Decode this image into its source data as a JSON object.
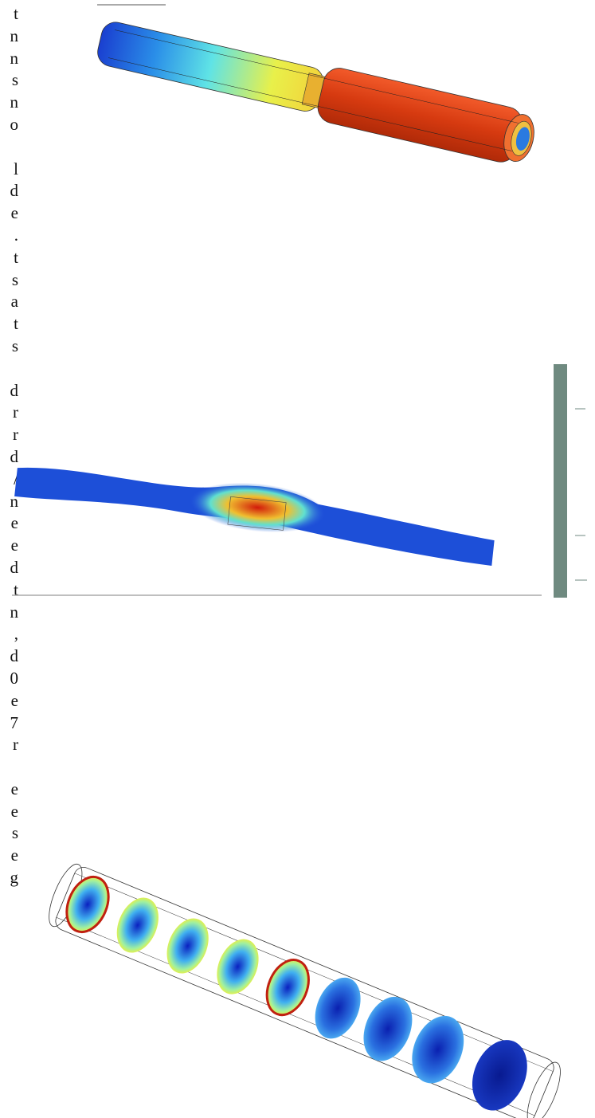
{
  "text_column": {
    "paragraphs": [
      [
        "t",
        "n",
        "n",
        "s",
        "n",
        "o"
      ],
      [
        "l",
        "d",
        "e",
        ".",
        "t",
        "s",
        "a",
        "t",
        "s"
      ],
      [
        "d",
        "r",
        "r",
        "d",
        "/",
        "n",
        "e",
        "e",
        "d",
        "t",
        "n",
        ",",
        "d",
        "0",
        "e",
        "7",
        "r"
      ],
      [
        "e",
        "e",
        "s",
        "e",
        "g"
      ]
    ]
  }
}
